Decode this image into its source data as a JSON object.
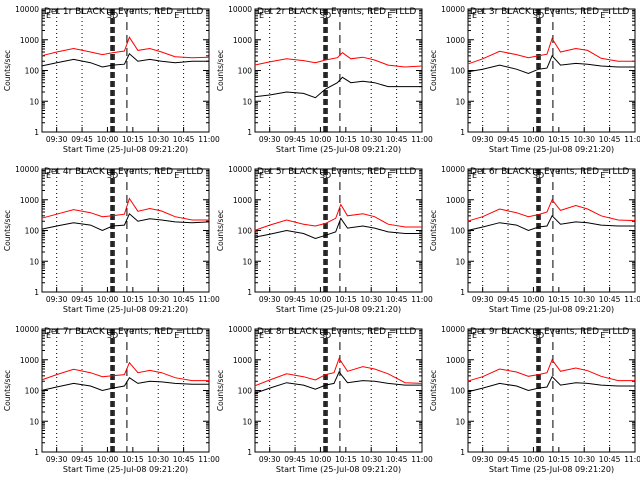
{
  "chart_data": {
    "type": "line",
    "shared": {
      "xlabel": "Start Time (25-Jul-08 09:21:20)",
      "ylabel": "Counts/sec",
      "xticks": [
        "09:30",
        "09:45",
        "10:00",
        "10:15",
        "10:30",
        "10:45",
        "11:00"
      ],
      "xlim": [
        "09:21:20",
        "11:00"
      ],
      "yticks": [
        "1",
        "10",
        "100",
        "1000",
        "10000"
      ],
      "ylim": [
        1,
        10000
      ],
      "ylog": true,
      "grid": false,
      "legend": "none",
      "event_labels": [
        "SD",
        "E"
      ],
      "colors": {
        "events": "#000000",
        "lld": "#ff0000",
        "axes": "#000000"
      }
    },
    "panels": [
      {
        "title": "Det 1r  BLACK = Events, RED = LLD",
        "series": [
          {
            "color": "#ff0000",
            "x": [
              "09:21",
              "09:30",
              "09:40",
              "09:50",
              "09:57",
              "10:03",
              "10:10",
              "10:13",
              "10:18",
              "10:25",
              "10:32",
              "10:40",
              "10:50",
              "11:00"
            ],
            "y": [
              300,
              400,
              520,
              400,
              330,
              380,
              430,
              1200,
              450,
              520,
              400,
              280,
              260,
              270
            ]
          },
          {
            "color": "#000000",
            "x": [
              "09:21",
              "09:30",
              "09:40",
              "09:50",
              "09:57",
              "10:03",
              "10:10",
              "10:13",
              "10:18",
              "10:25",
              "10:32",
              "10:40",
              "10:50",
              "11:00"
            ],
            "y": [
              140,
              180,
              230,
              180,
              130,
              150,
              160,
              350,
              200,
              230,
              200,
              180,
              200,
              200
            ]
          }
        ]
      },
      {
        "title": "Det 2r  BLACK = Events, RED = LLD",
        "series": [
          {
            "color": "#ff0000",
            "x": [
              "09:21",
              "09:30",
              "09:40",
              "09:50",
              "09:57",
              "10:03",
              "10:10",
              "10:13",
              "10:18",
              "10:25",
              "10:32",
              "10:40",
              "10:50",
              "11:00"
            ],
            "y": [
              150,
              190,
              240,
              210,
              180,
              220,
              260,
              380,
              240,
              270,
              220,
              150,
              130,
              140
            ]
          },
          {
            "color": "#000000",
            "x": [
              "09:21",
              "09:30",
              "09:40",
              "09:50",
              "09:57",
              "10:03",
              "10:10",
              "10:13",
              "10:18",
              "10:25",
              "10:32",
              "10:40",
              "10:50",
              "11:00"
            ],
            "y": [
              14,
              16,
              20,
              18,
              13,
              25,
              40,
              60,
              40,
              45,
              40,
              30,
              30,
              30
            ]
          }
        ]
      },
      {
        "title": "Det 3r  BLACK = Events, RED = LLD",
        "series": [
          {
            "color": "#ff0000",
            "x": [
              "09:21",
              "09:30",
              "09:40",
              "09:50",
              "09:57",
              "10:03",
              "10:08",
              "10:11",
              "10:16",
              "10:25",
              "10:32",
              "10:40",
              "10:50",
              "11:00"
            ],
            "y": [
              160,
              240,
              420,
              330,
              260,
              300,
              340,
              1100,
              400,
              520,
              450,
              250,
              200,
              200
            ]
          },
          {
            "color": "#000000",
            "x": [
              "09:21",
              "09:30",
              "09:40",
              "09:50",
              "09:57",
              "10:03",
              "10:08",
              "10:11",
              "10:16",
              "10:25",
              "10:32",
              "10:40",
              "10:50",
              "11:00"
            ],
            "y": [
              90,
              110,
              150,
              110,
              80,
              110,
              120,
              300,
              150,
              170,
              160,
              140,
              130,
              130
            ]
          }
        ]
      },
      {
        "title": "Det 4r  BLACK = Events, RED = LLD",
        "series": [
          {
            "color": "#ff0000",
            "x": [
              "09:21",
              "09:30",
              "09:40",
              "09:50",
              "09:57",
              "10:03",
              "10:10",
              "10:13",
              "10:18",
              "10:25",
              "10:32",
              "10:40",
              "10:50",
              "11:00"
            ],
            "y": [
              250,
              340,
              480,
              380,
              280,
              300,
              340,
              1100,
              420,
              520,
              430,
              280,
              220,
              220
            ]
          },
          {
            "color": "#000000",
            "x": [
              "09:21",
              "09:30",
              "09:40",
              "09:50",
              "09:57",
              "10:03",
              "10:10",
              "10:13",
              "10:18",
              "10:25",
              "10:32",
              "10:40",
              "10:50",
              "11:00"
            ],
            "y": [
              110,
              140,
              180,
              150,
              100,
              140,
              150,
              350,
              200,
              240,
              220,
              190,
              180,
              190
            ]
          }
        ]
      },
      {
        "title": "Det 5r  BLACK = Events, RED = LLD",
        "series": [
          {
            "color": "#ff0000",
            "x": [
              "09:21",
              "09:30",
              "09:40",
              "09:50",
              "09:57",
              "10:03",
              "10:09",
              "10:12",
              "10:16",
              "10:25",
              "10:32",
              "10:40",
              "10:50",
              "11:00"
            ],
            "y": [
              100,
              150,
              220,
              160,
              140,
              170,
              250,
              700,
              300,
              350,
              280,
              160,
              130,
              130
            ]
          },
          {
            "color": "#000000",
            "x": [
              "09:21",
              "09:30",
              "09:40",
              "09:50",
              "09:57",
              "10:03",
              "10:09",
              "10:12",
              "10:16",
              "10:25",
              "10:32",
              "10:40",
              "10:50",
              "11:00"
            ],
            "y": [
              60,
              75,
              100,
              80,
              55,
              70,
              90,
              250,
              120,
              140,
              120,
              90,
              80,
              80
            ]
          }
        ]
      },
      {
        "title": "Det 6r  BLACK = Events, RED = LLD",
        "series": [
          {
            "color": "#ff0000",
            "x": [
              "09:21",
              "09:30",
              "09:40",
              "09:50",
              "09:57",
              "10:03",
              "10:08",
              "10:11",
              "10:16",
              "10:25",
              "10:32",
              "10:40",
              "10:50",
              "11:00"
            ],
            "y": [
              200,
              280,
              500,
              380,
              280,
              330,
              400,
              1000,
              450,
              650,
              500,
              300,
              220,
              210
            ]
          },
          {
            "color": "#000000",
            "x": [
              "09:21",
              "09:30",
              "09:40",
              "09:50",
              "09:57",
              "10:03",
              "10:08",
              "10:11",
              "10:16",
              "10:25",
              "10:32",
              "10:40",
              "10:50",
              "11:00"
            ],
            "y": [
              100,
              130,
              180,
              150,
              100,
              130,
              140,
              300,
              160,
              190,
              180,
              150,
              140,
              140
            ]
          }
        ]
      },
      {
        "title": "Det 7r  BLACK = Events, RED = LLD",
        "series": [
          {
            "color": "#ff0000",
            "x": [
              "09:21",
              "09:30",
              "09:40",
              "09:50",
              "09:57",
              "10:03",
              "10:10",
              "10:13",
              "10:18",
              "10:25",
              "10:32",
              "10:40",
              "10:50",
              "11:00"
            ],
            "y": [
              220,
              330,
              490,
              380,
              280,
              300,
              330,
              800,
              380,
              450,
              380,
              260,
              210,
              210
            ]
          },
          {
            "color": "#000000",
            "x": [
              "09:21",
              "09:30",
              "09:40",
              "09:50",
              "09:57",
              "10:03",
              "10:10",
              "10:13",
              "10:18",
              "10:25",
              "10:32",
              "10:40",
              "10:50",
              "11:00"
            ],
            "y": [
              100,
              130,
              170,
              140,
              100,
              120,
              140,
              260,
              170,
              200,
              190,
              170,
              160,
              160
            ]
          }
        ]
      },
      {
        "title": "Det 8r  BLACK = Events, RED = LLD",
        "series": [
          {
            "color": "#ff0000",
            "x": [
              "09:21",
              "09:30",
              "09:40",
              "09:50",
              "09:57",
              "10:03",
              "10:08",
              "10:11",
              "10:16",
              "10:25",
              "10:32",
              "10:40",
              "10:50",
              "11:00"
            ],
            "y": [
              140,
              220,
              350,
              280,
              220,
              330,
              380,
              1100,
              420,
              600,
              500,
              350,
              180,
              170
            ]
          },
          {
            "color": "#000000",
            "x": [
              "09:21",
              "09:30",
              "09:40",
              "09:50",
              "09:57",
              "10:03",
              "10:08",
              "10:11",
              "10:16",
              "10:25",
              "10:32",
              "10:40",
              "10:50",
              "11:00"
            ],
            "y": [
              80,
              120,
              180,
              150,
              110,
              150,
              170,
              400,
              180,
              210,
              200,
              170,
              150,
              150
            ]
          }
        ]
      },
      {
        "title": "Det 9r  BLACK = Events, RED = LLD",
        "series": [
          {
            "color": "#ff0000",
            "x": [
              "09:21",
              "09:30",
              "09:40",
              "09:50",
              "09:57",
              "10:03",
              "10:08",
              "10:11",
              "10:16",
              "10:25",
              "10:32",
              "10:40",
              "10:50",
              "11:00"
            ],
            "y": [
              200,
              280,
              500,
              400,
              290,
              330,
              380,
              1000,
              420,
              540,
              440,
              290,
              210,
              210
            ]
          },
          {
            "color": "#000000",
            "x": [
              "09:21",
              "09:30",
              "09:40",
              "09:50",
              "09:57",
              "10:03",
              "10:08",
              "10:11",
              "10:16",
              "10:25",
              "10:32",
              "10:40",
              "10:50",
              "11:00"
            ],
            "y": [
              90,
              120,
              170,
              140,
              100,
              120,
              130,
              280,
              150,
              180,
              170,
              150,
              140,
              140
            ]
          }
        ]
      }
    ]
  }
}
